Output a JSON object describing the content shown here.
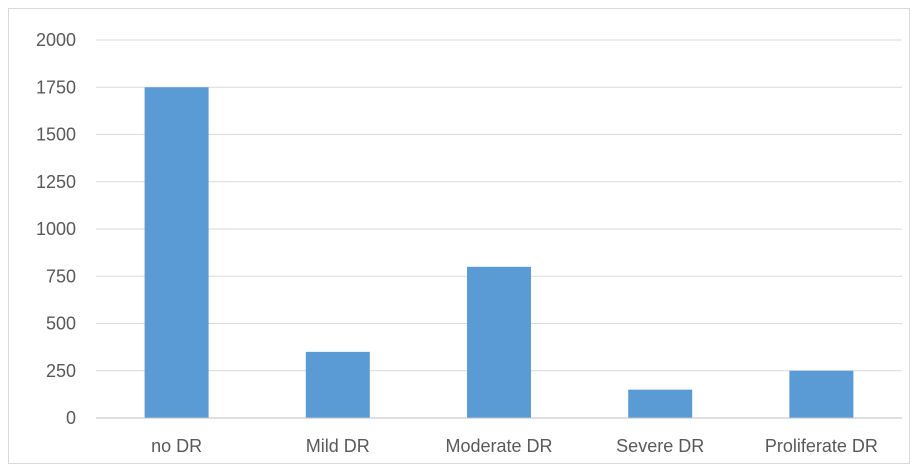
{
  "chart_data": {
    "type": "bar",
    "categories": [
      "no DR",
      "Mild DR",
      "Moderate DR",
      "Severe DR",
      "Proliferate DR"
    ],
    "values": [
      1750,
      350,
      800,
      150,
      250
    ],
    "ylim": [
      0,
      2000
    ],
    "yticks": [
      0,
      250,
      500,
      750,
      1000,
      1250,
      1500,
      1750,
      2000
    ],
    "grid": true,
    "legend": "none",
    "colors": {
      "bar": "#5b9bd5",
      "grid": "#d9d9d9",
      "axis": "#bfbfbf",
      "text": "#595959"
    }
  }
}
